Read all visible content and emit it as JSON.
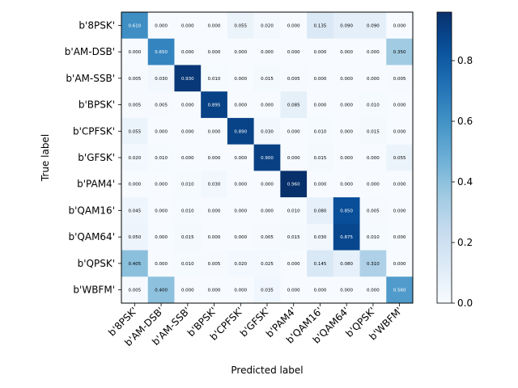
{
  "chart_data": {
    "type": "heatmap",
    "title": "",
    "xlabel": "Predicted label",
    "ylabel": "True label",
    "classes": [
      "b'8PSK'",
      "b'AM-DSB'",
      "b'AM-SSB'",
      "b'BPSK'",
      "b'CPFSK'",
      "b'GFSK'",
      "b'PAM4'",
      "b'QAM16'",
      "b'QAM64'",
      "b'QPSK'",
      "b'WBFM'"
    ],
    "matrix": [
      [
        0.61,
        0.0,
        0.0,
        0.0,
        0.055,
        0.02,
        0.0,
        0.135,
        0.09,
        0.09,
        0.0
      ],
      [
        0.0,
        0.65,
        0.0,
        0.0,
        0.0,
        0.0,
        0.0,
        0.0,
        0.0,
        0.0,
        0.35
      ],
      [
        0.005,
        0.03,
        0.93,
        0.01,
        0.0,
        0.015,
        0.005,
        0.0,
        0.0,
        0.0,
        0.005
      ],
      [
        0.005,
        0.005,
        0.0,
        0.895,
        0.0,
        0.0,
        0.085,
        0.0,
        0.0,
        0.01,
        0.0
      ],
      [
        0.055,
        0.0,
        0.0,
        0.0,
        0.89,
        0.03,
        0.0,
        0.01,
        0.0,
        0.015,
        0.0
      ],
      [
        0.02,
        0.01,
        0.0,
        0.0,
        0.0,
        0.9,
        0.0,
        0.015,
        0.0,
        0.0,
        0.055
      ],
      [
        0.0,
        0.0,
        0.01,
        0.03,
        0.0,
        0.0,
        0.96,
        0.0,
        0.0,
        0.0,
        0.0
      ],
      [
        0.045,
        0.0,
        0.01,
        0.0,
        0.0,
        0.0,
        0.01,
        0.08,
        0.85,
        0.005,
        0.0
      ],
      [
        0.05,
        0.0,
        0.015,
        0.0,
        0.0,
        0.005,
        0.015,
        0.03,
        0.875,
        0.01,
        0.0
      ],
      [
        0.405,
        0.0,
        0.01,
        0.005,
        0.02,
        0.025,
        0.0,
        0.145,
        0.08,
        0.31,
        0.0
      ],
      [
        0.005,
        0.4,
        0.0,
        0.0,
        0.0,
        0.035,
        0.0,
        0.0,
        0.0,
        0.0,
        0.56
      ]
    ],
    "value_range": [
      0,
      0.96
    ],
    "colormap": "Blues",
    "colorbar_ticks": [
      "0.0",
      "0.2",
      "0.4",
      "0.6",
      "0.8"
    ],
    "colorbar_tick_values": [
      0,
      0.2,
      0.4,
      0.6,
      0.8
    ],
    "grid": false
  }
}
